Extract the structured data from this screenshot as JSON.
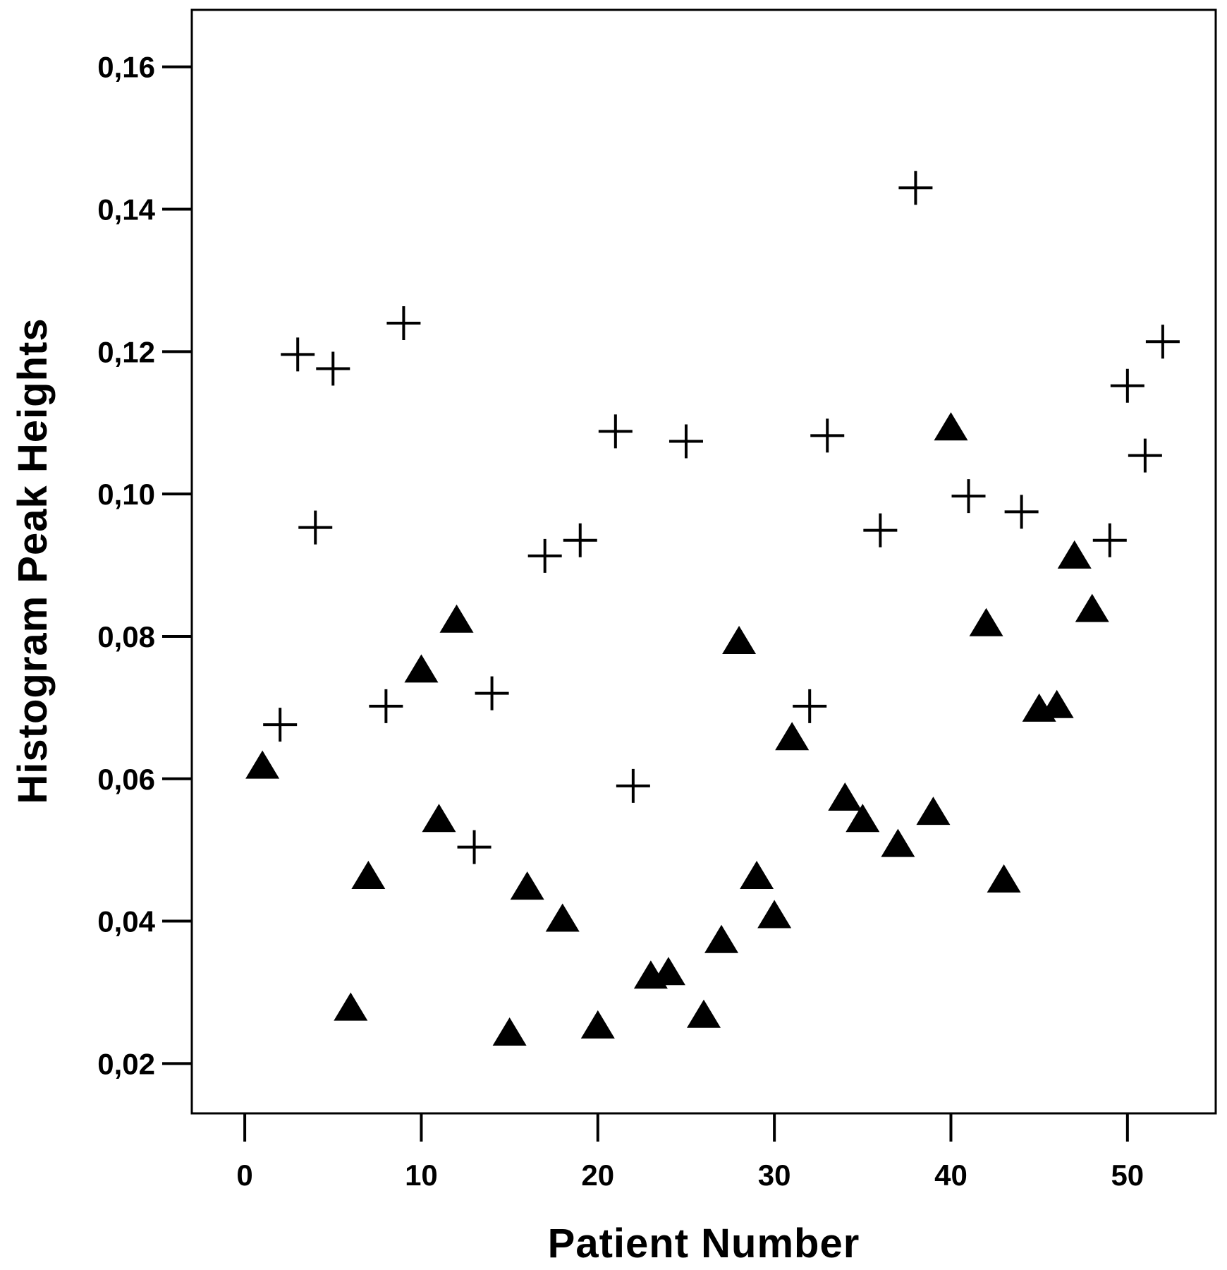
{
  "chart_data": {
    "type": "scatter",
    "xlabel": "Patient  Number",
    "ylabel": "Histogram  Peak  Heights",
    "xlim": [
      -3,
      55
    ],
    "ylim": [
      0.013,
      0.168
    ],
    "x_ticks": [
      0,
      10,
      20,
      30,
      40,
      50
    ],
    "y_ticks": [
      0.02,
      0.04,
      0.06,
      0.08,
      0.1,
      0.12,
      0.14,
      0.16
    ],
    "x_tick_labels": [
      "0",
      "10",
      "20",
      "30",
      "40",
      "50"
    ],
    "y_tick_labels": [
      "0,02",
      "0,04",
      "0,06",
      "0,08",
      "0,10",
      "0,12",
      "0,14",
      "0,16"
    ],
    "grid": false,
    "series": [
      {
        "marker": "plus",
        "color": "#000000",
        "points": [
          [
            2,
            0.0676
          ],
          [
            3,
            0.1196
          ],
          [
            4,
            0.0953
          ],
          [
            5,
            0.1176
          ],
          [
            8,
            0.0702
          ],
          [
            9,
            0.124
          ],
          [
            13,
            0.0504
          ],
          [
            14,
            0.072
          ],
          [
            17,
            0.0913
          ],
          [
            19,
            0.0935
          ],
          [
            21,
            0.1088
          ],
          [
            22,
            0.059
          ],
          [
            25,
            0.1074
          ],
          [
            32,
            0.0702
          ],
          [
            33,
            0.1082
          ],
          [
            36,
            0.0949
          ],
          [
            38,
            0.143
          ],
          [
            41,
            0.0997
          ],
          [
            44,
            0.0975
          ],
          [
            49,
            0.0935
          ],
          [
            50,
            0.1152
          ],
          [
            51,
            0.1054
          ],
          [
            52,
            0.1214
          ]
        ]
      },
      {
        "marker": "triangle",
        "color": "#000000",
        "points": [
          [
            1,
            0.062
          ],
          [
            6,
            0.028
          ],
          [
            7,
            0.0465
          ],
          [
            10,
            0.0755
          ],
          [
            11,
            0.0545
          ],
          [
            12,
            0.0825
          ],
          [
            15,
            0.0245
          ],
          [
            16,
            0.045
          ],
          [
            18,
            0.0405
          ],
          [
            20,
            0.0255
          ],
          [
            23,
            0.0325
          ],
          [
            24,
            0.033
          ],
          [
            26,
            0.027
          ],
          [
            27,
            0.0375
          ],
          [
            28,
            0.0795
          ],
          [
            29,
            0.0465
          ],
          [
            30,
            0.041
          ],
          [
            31,
            0.066
          ],
          [
            34,
            0.0575
          ],
          [
            35,
            0.0545
          ],
          [
            37,
            0.051
          ],
          [
            39,
            0.0555
          ],
          [
            40,
            0.1095
          ],
          [
            42,
            0.082
          ],
          [
            43,
            0.046
          ],
          [
            45,
            0.07
          ],
          [
            46,
            0.0705
          ],
          [
            47,
            0.0915
          ],
          [
            48,
            0.084
          ]
        ]
      }
    ]
  }
}
